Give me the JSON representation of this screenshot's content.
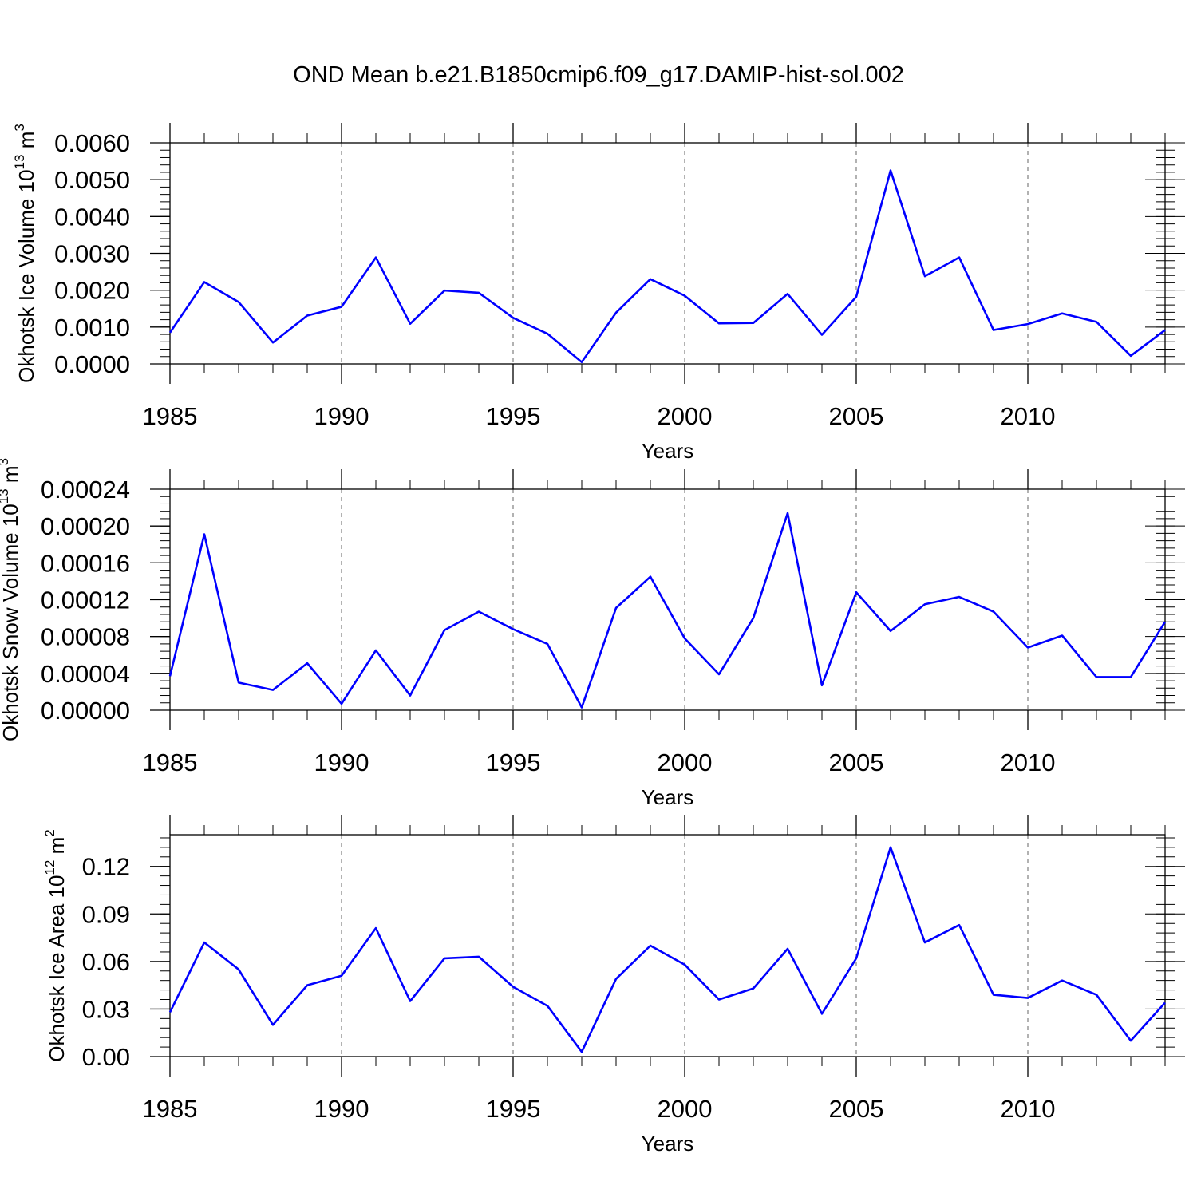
{
  "title": "OND Mean b.e21.B1850cmip6.f09_g17.DAMIP-hist-sol.002",
  "colors": {
    "line": "#0000ff",
    "axis": "#000000",
    "grid": "#666666"
  },
  "chart_data": [
    {
      "type": "line",
      "ylabel_main": "Okhotsk Ice Volume 10",
      "ylabel_exp": "13",
      "ylabel_unit": " m",
      "ylabel_unit_exp": "3",
      "xlabel": "Years",
      "xlim": [
        1985,
        2014
      ],
      "ylim": [
        0,
        0.006
      ],
      "yticks": [
        0,
        0.001,
        0.002,
        0.003,
        0.004,
        0.005,
        0.006
      ],
      "ytick_labels": [
        "0.0000",
        "0.0010",
        "0.0020",
        "0.0030",
        "0.0040",
        "0.0050",
        "0.0060"
      ],
      "xticks": [
        1985,
        1990,
        1995,
        2000,
        2005,
        2010
      ],
      "xtick_labels": [
        "1985",
        "1990",
        "1995",
        "2000",
        "2005",
        "2010"
      ],
      "x": [
        1985,
        1986,
        1987,
        1988,
        1989,
        1990,
        1991,
        1992,
        1993,
        1994,
        1995,
        1996,
        1997,
        1998,
        1999,
        2000,
        2001,
        2002,
        2003,
        2004,
        2005,
        2006,
        2007,
        2008,
        2009,
        2010,
        2011,
        2012,
        2013,
        2014
      ],
      "series": [
        {
          "name": "Okhotsk Ice Volume",
          "values": [
            0.00085,
            0.00222,
            0.00168,
            0.00058,
            0.00131,
            0.00155,
            0.00289,
            0.00109,
            0.00199,
            0.00193,
            0.00125,
            0.00082,
            5e-05,
            0.00139,
            0.0023,
            0.00185,
            0.0011,
            0.00111,
            0.0019,
            0.00079,
            0.00182,
            0.00525,
            0.00238,
            0.00289,
            0.00092,
            0.00108,
            0.00137,
            0.00114,
            0.00022,
            0.00092
          ]
        }
      ]
    },
    {
      "type": "line",
      "ylabel_main": "Okhotsk Snow Volume 10",
      "ylabel_exp": "13",
      "ylabel_unit": " m",
      "ylabel_unit_exp": "3",
      "xlabel": "Years",
      "xlim": [
        1985,
        2014
      ],
      "ylim": [
        0,
        0.00024
      ],
      "yticks": [
        0,
        4e-05,
        8e-05,
        0.00012,
        0.00016,
        0.0002,
        0.00024
      ],
      "ytick_labels": [
        "0.00000",
        "0.00004",
        "0.00008",
        "0.00012",
        "0.00016",
        "0.00020",
        "0.00024"
      ],
      "xticks": [
        1985,
        1990,
        1995,
        2000,
        2005,
        2010
      ],
      "xtick_labels": [
        "1985",
        "1990",
        "1995",
        "2000",
        "2005",
        "2010"
      ],
      "x": [
        1985,
        1986,
        1987,
        1988,
        1989,
        1990,
        1991,
        1992,
        1993,
        1994,
        1995,
        1996,
        1997,
        1998,
        1999,
        2000,
        2001,
        2002,
        2003,
        2004,
        2005,
        2006,
        2007,
        2008,
        2009,
        2010,
        2011,
        2012,
        2013,
        2014
      ],
      "series": [
        {
          "name": "Okhotsk Snow Volume",
          "values": [
            3.7e-05,
            0.000191,
            3e-05,
            2.2e-05,
            5.1e-05,
            7e-06,
            6.5e-05,
            1.6e-05,
            8.7e-05,
            0.000107,
            8.8e-05,
            7.2e-05,
            3e-06,
            0.000111,
            0.000145,
            7.8e-05,
            3.9e-05,
            0.0001,
            0.000214,
            2.7e-05,
            0.000128,
            8.6e-05,
            0.000115,
            0.000123,
            0.000107,
            6.8e-05,
            8.1e-05,
            3.6e-05,
            3.6e-05,
            9.6e-05
          ]
        }
      ]
    },
    {
      "type": "line",
      "ylabel_main": "Okhotsk Ice Area 10",
      "ylabel_exp": "12",
      "ylabel_unit": " m",
      "ylabel_unit_exp": "2",
      "xlabel": "Years",
      "xlim": [
        1985,
        2014
      ],
      "ylim": [
        0,
        0.14
      ],
      "yticks": [
        0,
        0.03,
        0.06,
        0.09,
        0.12
      ],
      "ytick_labels": [
        "0.00",
        "0.03",
        "0.06",
        "0.09",
        "0.12"
      ],
      "xticks": [
        1985,
        1990,
        1995,
        2000,
        2005,
        2010
      ],
      "xtick_labels": [
        "1985",
        "1990",
        "1995",
        "2000",
        "2005",
        "2010"
      ],
      "x": [
        1985,
        1986,
        1987,
        1988,
        1989,
        1990,
        1991,
        1992,
        1993,
        1994,
        1995,
        1996,
        1997,
        1998,
        1999,
        2000,
        2001,
        2002,
        2003,
        2004,
        2005,
        2006,
        2007,
        2008,
        2009,
        2010,
        2011,
        2012,
        2013,
        2014
      ],
      "series": [
        {
          "name": "Okhotsk Ice Area",
          "values": [
            0.028,
            0.072,
            0.055,
            0.02,
            0.045,
            0.051,
            0.081,
            0.035,
            0.062,
            0.063,
            0.044,
            0.032,
            0.003,
            0.049,
            0.07,
            0.058,
            0.036,
            0.043,
            0.068,
            0.027,
            0.062,
            0.132,
            0.072,
            0.083,
            0.039,
            0.037,
            0.048,
            0.039,
            0.01,
            0.034
          ]
        }
      ]
    }
  ]
}
